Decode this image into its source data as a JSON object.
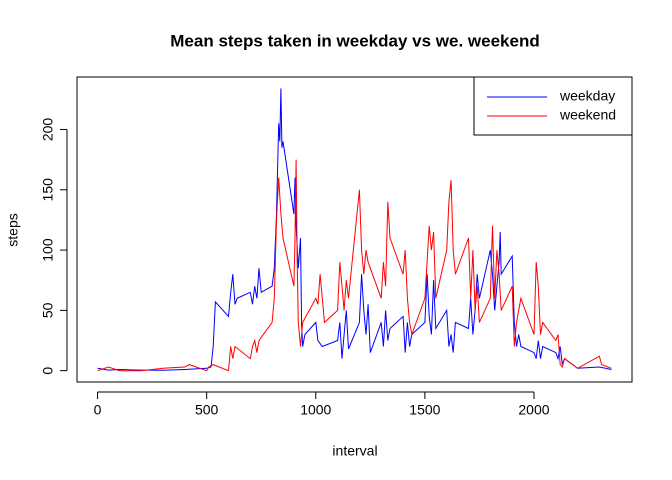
{
  "chart_data": {
    "type": "line",
    "title": "Mean steps taken in weekday vs we. weekend",
    "xlabel": "interval",
    "ylabel": "steps",
    "xlim": [
      -94.2,
      2449.2
    ],
    "ylim": [
      -9.4,
      243.5
    ],
    "xticks": [
      0,
      500,
      1000,
      1500,
      2000
    ],
    "yticks": [
      0,
      50,
      100,
      150,
      200
    ],
    "legend": "topright",
    "series": [
      {
        "name": "weekday",
        "color": "#0000ff",
        "x": [
          0,
          50,
          100,
          200,
          300,
          400,
          500,
          520,
          530,
          540,
          600,
          610,
          620,
          630,
          640,
          700,
          710,
          720,
          730,
          740,
          750,
          800,
          810,
          820,
          830,
          835,
          840,
          845,
          850,
          900,
          905,
          910,
          920,
          930,
          935,
          940,
          950,
          1000,
          1010,
          1030,
          1100,
          1110,
          1120,
          1130,
          1140,
          1150,
          1200,
          1210,
          1220,
          1230,
          1240,
          1250,
          1300,
          1310,
          1320,
          1330,
          1340,
          1400,
          1410,
          1420,
          1430,
          1440,
          1500,
          1510,
          1520,
          1530,
          1540,
          1550,
          1600,
          1610,
          1620,
          1630,
          1640,
          1700,
          1710,
          1720,
          1730,
          1740,
          1750,
          1800,
          1810,
          1820,
          1830,
          1840,
          1845,
          1850,
          1900,
          1910,
          1920,
          1930,
          1940,
          2000,
          2010,
          2020,
          2030,
          2040,
          2100,
          2110,
          2120,
          2130,
          2140,
          2200,
          2300,
          2355
        ],
        "values": [
          2,
          0.5,
          1,
          0.5,
          0.3,
          1,
          2,
          3,
          20,
          57,
          45,
          65,
          80,
          55,
          60,
          65,
          55,
          70,
          60,
          85,
          65,
          70,
          85,
          130,
          205,
          190,
          234,
          185,
          190,
          130,
          160,
          120,
          85,
          110,
          38,
          20,
          30,
          40,
          25,
          20,
          25,
          40,
          10,
          30,
          50,
          18,
          40,
          80,
          50,
          30,
          55,
          15,
          40,
          20,
          50,
          25,
          35,
          45,
          15,
          40,
          20,
          30,
          40,
          80,
          45,
          30,
          75,
          35,
          50,
          20,
          30,
          15,
          40,
          35,
          60,
          30,
          50,
          80,
          60,
          100,
          80,
          50,
          70,
          90,
          115,
          80,
          95,
          40,
          20,
          30,
          20,
          15,
          10,
          25,
          10,
          20,
          15,
          10,
          20,
          5,
          10,
          2,
          3,
          1
        ]
      },
      {
        "name": "weekend",
        "color": "#ff0000",
        "x": [
          0,
          50,
          100,
          200,
          300,
          400,
          420,
          500,
          510,
          530,
          600,
          610,
          620,
          630,
          700,
          710,
          720,
          730,
          740,
          800,
          810,
          820,
          830,
          840,
          850,
          900,
          905,
          910,
          915,
          920,
          930,
          940,
          1000,
          1010,
          1020,
          1030,
          1040,
          1100,
          1110,
          1120,
          1130,
          1140,
          1150,
          1200,
          1210,
          1220,
          1230,
          1240,
          1300,
          1310,
          1320,
          1330,
          1340,
          1400,
          1410,
          1420,
          1430,
          1440,
          1500,
          1510,
          1520,
          1530,
          1540,
          1550,
          1600,
          1610,
          1620,
          1630,
          1640,
          1700,
          1710,
          1720,
          1730,
          1740,
          1750,
          1800,
          1810,
          1820,
          1830,
          1840,
          1850,
          1900,
          1910,
          1920,
          1930,
          1940,
          2000,
          2010,
          2020,
          2030,
          2040,
          2100,
          2110,
          2120,
          2130,
          2140,
          2200,
          2300,
          2310,
          2355
        ],
        "values": [
          0,
          3,
          0,
          0,
          2,
          3,
          5,
          0,
          3,
          5,
          0,
          20,
          10,
          20,
          10,
          20,
          25,
          15,
          25,
          40,
          60,
          125,
          160,
          130,
          110,
          70,
          110,
          175,
          90,
          40,
          20,
          40,
          60,
          55,
          80,
          60,
          40,
          50,
          90,
          70,
          50,
          75,
          60,
          150,
          100,
          80,
          100,
          90,
          60,
          90,
          70,
          140,
          110,
          80,
          100,
          60,
          40,
          30,
          60,
          90,
          120,
          100,
          115,
          60,
          100,
          140,
          158,
          100,
          80,
          110,
          60,
          100,
          50,
          70,
          40,
          60,
          120,
          60,
          100,
          80,
          50,
          70,
          20,
          40,
          50,
          60,
          30,
          90,
          70,
          30,
          40,
          25,
          30,
          5,
          3,
          10,
          2,
          12,
          5,
          2
        ]
      }
    ]
  }
}
